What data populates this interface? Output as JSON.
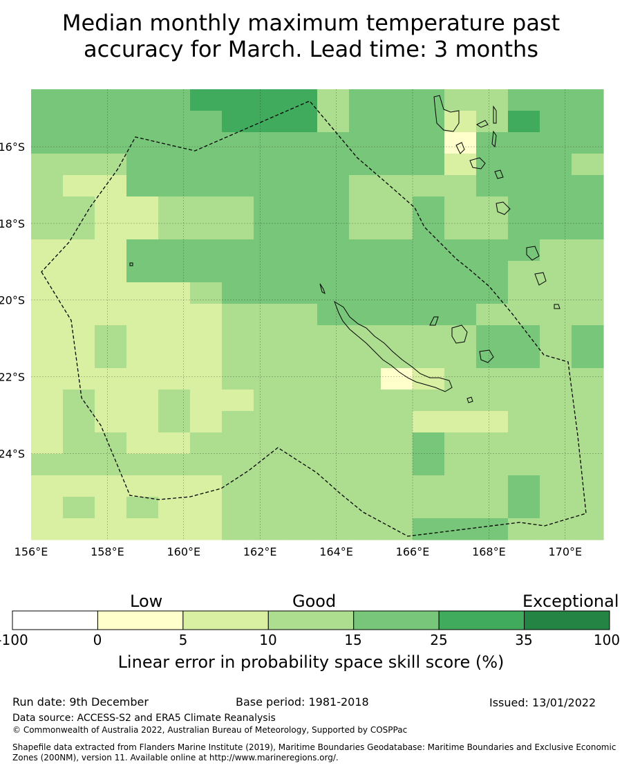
{
  "title": {
    "line1": "Median monthly maximum temperature past",
    "line2": "accuracy for March. Lead time: 3 months"
  },
  "map": {
    "lon_range": [
      156,
      171
    ],
    "lat_range": [
      -26.25,
      -14.5
    ],
    "x_ticks": [
      "156°E",
      "158°E",
      "160°E",
      "162°E",
      "164°E",
      "166°E",
      "168°E",
      "170°E"
    ],
    "y_ticks": [
      "16°S",
      "18°S",
      "20°S",
      "22°S",
      "24°S"
    ],
    "grid": true,
    "eez_boundary": "dashed",
    "cell_classes_note_levels": [
      0,
      1,
      2,
      3,
      4,
      5,
      6
    ]
  },
  "colorbar": {
    "categories": [
      "Low",
      "Good",
      "Exceptional"
    ],
    "ticks": [
      "-100",
      "0",
      "5",
      "10",
      "15",
      "25",
      "35",
      "100"
    ],
    "colors": [
      "#ffffff",
      "#ffffcc",
      "#d9f0a3",
      "#addd8e",
      "#78c679",
      "#41ab5d",
      "#238443"
    ],
    "label": "Linear error in probability space skill score (%)"
  },
  "footer": {
    "run_date": "Run date: 9th December",
    "base_period": "Base period: 1981-2018",
    "issued": "Issued: 13/01/2022",
    "data_source": "Data source: ACCESS-S2 and ERA5 Climate Reanalysis",
    "copyright": "© Commonwealth of Australia 2022, Australian Bureau of Meteorology, Supported by COSPPac",
    "shapefile_line1": "Shapefile data extracted from Flanders Marine Institute (2019), Maritime Boundaries Geodatabase: Maritime Boundaries and Exclusive Economic",
    "shapefile_line2": "Zones (200NM), version 11. Available online at http://www.marineregions.org/."
  }
}
